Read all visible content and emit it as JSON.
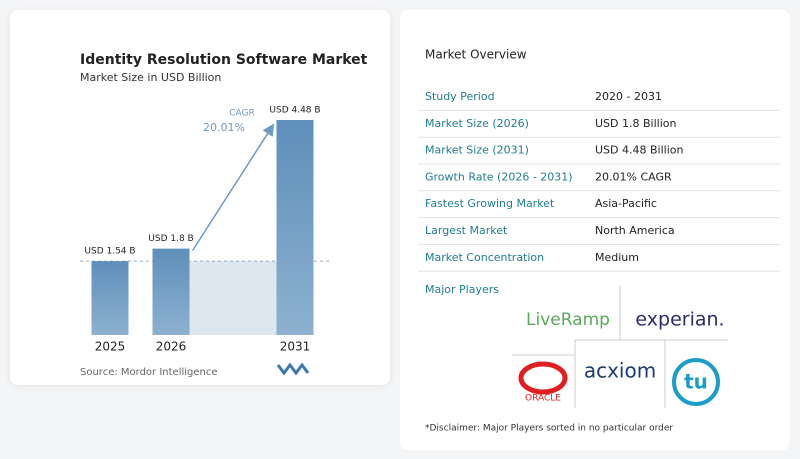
{
  "chart_data": {
    "type": "bar",
    "title": "Identity Resolution Software Market",
    "subtitle": "Market Size in USD Billion",
    "categories": [
      "2025",
      "2026",
      "2031"
    ],
    "values": [
      1.54,
      1.8,
      4.48
    ],
    "value_labels": [
      "USD 1.54 B",
      "USD 1.8 B",
      "USD 4.48 B"
    ],
    "color": "#5e8fba",
    "annotation": {
      "label": "CAGR",
      "value": "20.01%"
    },
    "source": "Source:  Mordor Intelligence"
  },
  "overview": {
    "title": "Market Overview",
    "rows": [
      [
        "Study Period",
        "2020 - 2031"
      ],
      [
        "Market Size (2026)",
        "USD 1.8 Billion"
      ],
      [
        "Market Size (2031)",
        "USD 4.48 Billion"
      ],
      [
        "Growth Rate (2026 - 2031)",
        "20.01% CAGR"
      ],
      [
        "Fastest Growing Market",
        "Asia-Pacific"
      ],
      [
        "Largest Market",
        "North America"
      ],
      [
        "Market Concentration",
        "Medium"
      ]
    ]
  },
  "players": {
    "title": "Major Players",
    "names": [
      "LiveRamp",
      "experian.",
      "acxiom",
      "ORACLE",
      "tu"
    ]
  },
  "disclaimer": "*Disclaimer: Major Players sorted in no particular order"
}
